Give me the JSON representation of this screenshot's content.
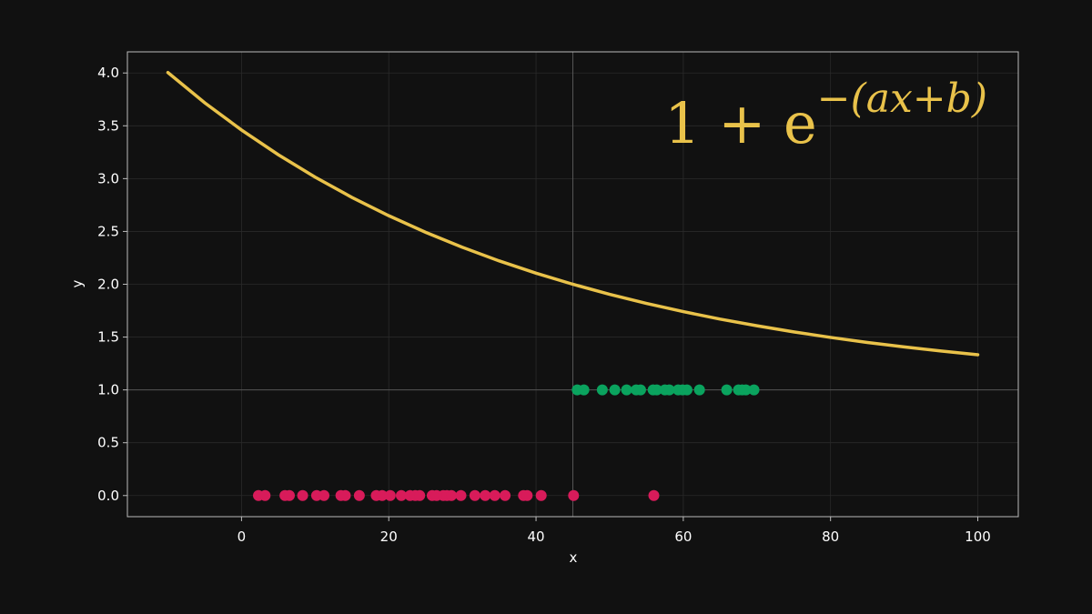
{
  "chart_data": {
    "type": "scatter",
    "xlabel": "x",
    "ylabel": "y",
    "xlim": [
      -15.5,
      105.5
    ],
    "ylim": [
      -0.2,
      4.2
    ],
    "xticks": [
      0,
      20,
      40,
      60,
      80,
      100
    ],
    "yticks": [
      {
        "value": 0,
        "label": "0.0"
      },
      {
        "value": 0.5,
        "label": "0.5"
      },
      {
        "value": 1,
        "label": "1.0"
      },
      {
        "value": 1.5,
        "label": "1.5"
      },
      {
        "value": 2,
        "label": "2.0"
      },
      {
        "value": 2.5,
        "label": "2.5"
      },
      {
        "value": 3,
        "label": "3.0"
      },
      {
        "value": 3.5,
        "label": "3.5"
      },
      {
        "value": 4,
        "label": "4.0"
      }
    ],
    "grid": true,
    "vline": 45,
    "hline": 1,
    "annotation": {
      "base": "1 + e",
      "exponent": "−(ax+b)"
    },
    "series": [
      {
        "type": "line",
        "color": "#e9c24a",
        "x": [
          -10,
          -5,
          0,
          5,
          10,
          15,
          20,
          25,
          30,
          35,
          40,
          45,
          50,
          55,
          60,
          65,
          70,
          75,
          80,
          85,
          90,
          95,
          100
        ],
        "y": [
          4.004,
          3.718,
          3.46,
          3.226,
          3.014,
          2.822,
          2.649,
          2.492,
          2.35,
          2.221,
          2.105,
          2.0,
          1.905,
          1.819,
          1.741,
          1.67,
          1.607,
          1.549,
          1.497,
          1.449,
          1.407,
          1.368,
          1.333
        ]
      },
      {
        "type": "scatter",
        "color": "#d81b5a",
        "x": [
          2.3,
          3.2,
          5.9,
          6.5,
          8.3,
          10.2,
          11.2,
          13.5,
          14.1,
          16.0,
          18.3,
          19.1,
          20.2,
          21.7,
          22.9,
          23.6,
          24.2,
          25.9,
          26.5,
          27.4,
          27.9,
          28.5,
          29.8,
          31.7,
          33.1,
          34.4,
          35.8,
          38.3,
          38.8,
          40.7,
          45.1,
          56.0
        ],
        "y": [
          0,
          0,
          0,
          0,
          0,
          0,
          0,
          0,
          0,
          0,
          0,
          0,
          0,
          0,
          0,
          0,
          0,
          0,
          0,
          0,
          0,
          0,
          0,
          0,
          0,
          0,
          0,
          0,
          0,
          0,
          0,
          0
        ]
      },
      {
        "type": "scatter",
        "color": "#0aa35e",
        "x": [
          45.6,
          46.5,
          49.0,
          50.7,
          52.3,
          53.6,
          54.2,
          55.9,
          56.4,
          57.5,
          58.1,
          59.3,
          59.9,
          60.5,
          62.2,
          65.9,
          67.5,
          68.0,
          68.5,
          69.6
        ],
        "y": [
          1,
          1,
          1,
          1,
          1,
          1,
          1,
          1,
          1,
          1,
          1,
          1,
          1,
          1,
          1,
          1,
          1,
          1,
          1,
          1
        ]
      }
    ]
  }
}
